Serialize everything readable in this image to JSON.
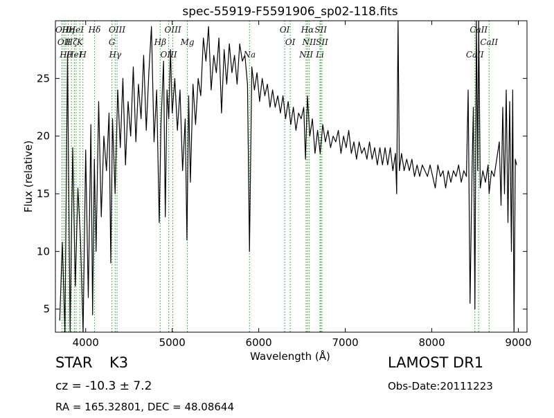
{
  "chart_data": {
    "type": "line",
    "title": "spec-55919-F5591906_sp02-118.fits",
    "xlabel": "Wavelength (Å)",
    "ylabel": "Flux (relative)",
    "xlim": [
      3650,
      9100
    ],
    "ylim": [
      3,
      30
    ],
    "xticks": [
      4000,
      5000,
      6000,
      7000,
      8000,
      9000
    ],
    "yticks": [
      5,
      10,
      15,
      20,
      25
    ],
    "grid": false,
    "line_color": "#000000",
    "marker_color": "#2ca02c",
    "series": [
      {
        "points": [
          [
            3700,
            4.0
          ],
          [
            3730,
            10.8
          ],
          [
            3760,
            3.0
          ],
          [
            3790,
            27.0
          ],
          [
            3820,
            3.0
          ],
          [
            3850,
            19.0
          ],
          [
            3880,
            7.0
          ],
          [
            3910,
            15.5
          ],
          [
            3940,
            11.0
          ],
          [
            3970,
            3.0
          ],
          [
            4000,
            18.8
          ],
          [
            4030,
            6.0
          ],
          [
            4060,
            21.0
          ],
          [
            4080,
            4.5
          ],
          [
            4100,
            18.0
          ],
          [
            4120,
            10.0
          ],
          [
            4150,
            23.0
          ],
          [
            4180,
            13.0
          ],
          [
            4210,
            20.0
          ],
          [
            4240,
            17.0
          ],
          [
            4270,
            22.0
          ],
          [
            4290,
            9.0
          ],
          [
            4310,
            21.5
          ],
          [
            4340,
            15.0
          ],
          [
            4370,
            24.0
          ],
          [
            4400,
            19.0
          ],
          [
            4430,
            25.0
          ],
          [
            4460,
            17.5
          ],
          [
            4490,
            23.0
          ],
          [
            4520,
            20.0
          ],
          [
            4550,
            26.0
          ],
          [
            4580,
            19.5
          ],
          [
            4610,
            24.5
          ],
          [
            4640,
            21.5
          ],
          [
            4670,
            27.0
          ],
          [
            4700,
            20.5
          ],
          [
            4730,
            25.5
          ],
          [
            4760,
            29.5
          ],
          [
            4790,
            19.5
          ],
          [
            4820,
            24.0
          ],
          [
            4850,
            12.5
          ],
          [
            4870,
            21.0
          ],
          [
            4900,
            26.5
          ],
          [
            4920,
            13.0
          ],
          [
            4940,
            24.0
          ],
          [
            4960,
            21.5
          ],
          [
            4980,
            27.5
          ],
          [
            5000,
            22.0
          ],
          [
            5030,
            25.0
          ],
          [
            5060,
            20.5
          ],
          [
            5090,
            24.0
          ],
          [
            5120,
            17.0
          ],
          [
            5150,
            21.5
          ],
          [
            5170,
            11.0
          ],
          [
            5190,
            23.5
          ],
          [
            5210,
            16.0
          ],
          [
            5240,
            24.5
          ],
          [
            5270,
            21.0
          ],
          [
            5300,
            25.0
          ],
          [
            5330,
            23.5
          ],
          [
            5360,
            28.5
          ],
          [
            5390,
            26.5
          ],
          [
            5420,
            29.5
          ],
          [
            5450,
            24.0
          ],
          [
            5480,
            27.0
          ],
          [
            5510,
            25.5
          ],
          [
            5540,
            28.5
          ],
          [
            5570,
            22.0
          ],
          [
            5600,
            27.5
          ],
          [
            5630,
            24.5
          ],
          [
            5660,
            28.0
          ],
          [
            5690,
            25.5
          ],
          [
            5720,
            27.0
          ],
          [
            5750,
            24.5
          ],
          [
            5780,
            28.0
          ],
          [
            5810,
            26.5
          ],
          [
            5840,
            27.0
          ],
          [
            5870,
            24.5
          ],
          [
            5893,
            10.0
          ],
          [
            5920,
            26.0
          ],
          [
            5950,
            24.0
          ],
          [
            5980,
            25.5
          ],
          [
            6010,
            23.0
          ],
          [
            6040,
            25.0
          ],
          [
            6070,
            23.5
          ],
          [
            6100,
            24.5
          ],
          [
            6130,
            22.5
          ],
          [
            6160,
            24.0
          ],
          [
            6190,
            22.5
          ],
          [
            6220,
            23.5
          ],
          [
            6250,
            22.0
          ],
          [
            6280,
            23.5
          ],
          [
            6310,
            21.5
          ],
          [
            6340,
            23.0
          ],
          [
            6370,
            21.0
          ],
          [
            6400,
            22.5
          ],
          [
            6430,
            20.5
          ],
          [
            6460,
            22.0
          ],
          [
            6490,
            21.5
          ],
          [
            6520,
            22.5
          ],
          [
            6540,
            18.0
          ],
          [
            6563,
            23.5
          ],
          [
            6590,
            20.0
          ],
          [
            6620,
            21.5
          ],
          [
            6650,
            18.5
          ],
          [
            6680,
            20.5
          ],
          [
            6710,
            18.5
          ],
          [
            6740,
            21.0
          ],
          [
            6770,
            19.5
          ],
          [
            6800,
            20.5
          ],
          [
            6830,
            19.0
          ],
          [
            6860,
            20.0
          ],
          [
            6890,
            19.5
          ],
          [
            6920,
            20.5
          ],
          [
            6950,
            18.5
          ],
          [
            6980,
            20.0
          ],
          [
            7010,
            19.0
          ],
          [
            7040,
            20.5
          ],
          [
            7070,
            18.5
          ],
          [
            7100,
            19.5
          ],
          [
            7130,
            18.0
          ],
          [
            7160,
            19.5
          ],
          [
            7190,
            18.5
          ],
          [
            7220,
            19.0
          ],
          [
            7250,
            18.0
          ],
          [
            7280,
            19.5
          ],
          [
            7310,
            18.0
          ],
          [
            7340,
            19.0
          ],
          [
            7370,
            17.5
          ],
          [
            7400,
            19.0
          ],
          [
            7430,
            17.5
          ],
          [
            7460,
            19.0
          ],
          [
            7490,
            17.5
          ],
          [
            7520,
            19.0
          ],
          [
            7550,
            17.0
          ],
          [
            7580,
            18.5
          ],
          [
            7594,
            15.0
          ],
          [
            7610,
            30.0
          ],
          [
            7625,
            17.0
          ],
          [
            7650,
            18.5
          ],
          [
            7680,
            17.0
          ],
          [
            7710,
            18.0
          ],
          [
            7740,
            17.0
          ],
          [
            7770,
            18.0
          ],
          [
            7800,
            16.5
          ],
          [
            7830,
            17.5
          ],
          [
            7860,
            16.5
          ],
          [
            7890,
            17.5
          ],
          [
            7920,
            17.0
          ],
          [
            7950,
            16.5
          ],
          [
            7980,
            17.5
          ],
          [
            8010,
            16.5
          ],
          [
            8040,
            15.5
          ],
          [
            8070,
            17.5
          ],
          [
            8100,
            16.5
          ],
          [
            8130,
            17.0
          ],
          [
            8160,
            15.5
          ],
          [
            8190,
            17.0
          ],
          [
            8220,
            16.0
          ],
          [
            8250,
            17.0
          ],
          [
            8280,
            16.5
          ],
          [
            8310,
            17.5
          ],
          [
            8340,
            16.0
          ],
          [
            8370,
            17.0
          ],
          [
            8400,
            16.5
          ],
          [
            8420,
            24.0
          ],
          [
            8442,
            5.5
          ],
          [
            8465,
            17.0
          ],
          [
            8480,
            22.5
          ],
          [
            8498,
            5.0
          ],
          [
            8515,
            30.0
          ],
          [
            8530,
            17.0
          ],
          [
            8542,
            30.0
          ],
          [
            8560,
            15.5
          ],
          [
            8590,
            17.0
          ],
          [
            8620,
            16.0
          ],
          [
            8650,
            17.5
          ],
          [
            8662,
            15.0
          ],
          [
            8690,
            17.0
          ],
          [
            8720,
            16.5
          ],
          [
            8750,
            18.0
          ],
          [
            8780,
            19.5
          ],
          [
            8800,
            14.0
          ],
          [
            8820,
            22.5
          ],
          [
            8840,
            15.0
          ],
          [
            8860,
            24.0
          ],
          [
            8880,
            12.5
          ],
          [
            8900,
            23.0
          ],
          [
            8920,
            10.0
          ],
          [
            8935,
            24.0
          ],
          [
            8950,
            3.0
          ],
          [
            8965,
            18.0
          ],
          [
            8980,
            17.5
          ]
        ]
      }
    ],
    "line_markers": [
      {
        "x": 3727,
        "label": "OII"
      },
      {
        "x": 3750,
        "label": "OII"
      },
      {
        "x": 3771,
        "label": "Hθ"
      },
      {
        "x": 3798,
        "label": "Hη"
      },
      {
        "x": 3835,
        "label": "Hζ"
      },
      {
        "x": 3869,
        "label": "HeI"
      },
      {
        "x": 3889,
        "label": "HeI"
      },
      {
        "x": 3933,
        "label": "K"
      },
      {
        "x": 3968,
        "label": "H"
      },
      {
        "x": 4102,
        "label": "Hδ"
      },
      {
        "x": 4304,
        "label": "G"
      },
      {
        "x": 4341,
        "label": "Hγ"
      },
      {
        "x": 4363,
        "label": "OIII"
      },
      {
        "x": 4861,
        "label": "Hβ"
      },
      {
        "x": 4959,
        "label": "OIII"
      },
      {
        "x": 5007,
        "label": "OIII"
      },
      {
        "x": 5175,
        "label": "Mg"
      },
      {
        "x": 5893,
        "label": "Na"
      },
      {
        "x": 6300,
        "label": "OI"
      },
      {
        "x": 6364,
        "label": "OI"
      },
      {
        "x": 6548,
        "label": "NII"
      },
      {
        "x": 6563,
        "label": "Hα"
      },
      {
        "x": 6583,
        "label": "NII"
      },
      {
        "x": 6707,
        "label": "Li"
      },
      {
        "x": 6716,
        "label": "SII"
      },
      {
        "x": 6731,
        "label": "SII"
      },
      {
        "x": 8498,
        "label": "CaII"
      },
      {
        "x": 8542,
        "label": "CaII"
      },
      {
        "x": 8662,
        "label": "CaII"
      }
    ]
  },
  "footer": {
    "object_type": "STAR",
    "spectral_class": "K3",
    "survey": "LAMOST DR1",
    "redshift_text": "cz = -10.3 ± 7.2",
    "obs_date": "Obs-Date:20111223",
    "coordinates": "RA = 165.32801, DEC = 48.08644"
  }
}
